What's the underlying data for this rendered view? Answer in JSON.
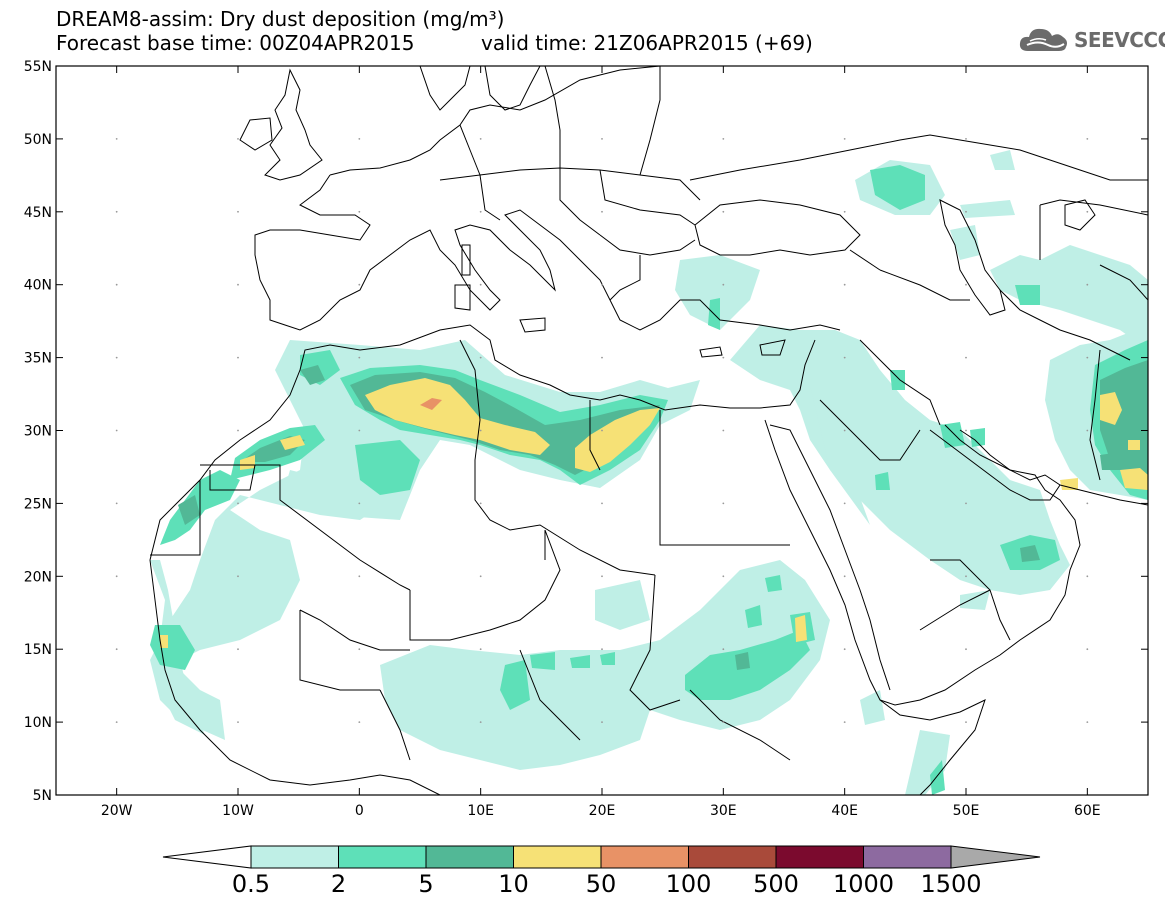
{
  "header": {
    "title_line1": "DREAM8-assim: Dry dust deposition (mg/m³)",
    "base_time": "Forecast base time: 00Z04APR2015",
    "valid_time": "valid time: 21Z06APR2015 (+69)",
    "logo_text": "SEEVCCC",
    "logo_icon": "cloud-icon"
  },
  "map": {
    "extent": {
      "lon": [
        -25,
        65
      ],
      "lat": [
        5,
        55
      ]
    },
    "lat_ticks": [
      {
        "value": 55,
        "label": "55N"
      },
      {
        "value": 50,
        "label": "50N"
      },
      {
        "value": 45,
        "label": "45N"
      },
      {
        "value": 40,
        "label": "40N"
      },
      {
        "value": 35,
        "label": "35N"
      },
      {
        "value": 30,
        "label": "30N"
      },
      {
        "value": 25,
        "label": "25N"
      },
      {
        "value": 20,
        "label": "20N"
      },
      {
        "value": 15,
        "label": "15N"
      },
      {
        "value": 10,
        "label": "10N"
      },
      {
        "value": 5,
        "label": "5N"
      }
    ],
    "lon_ticks": [
      {
        "value": -20,
        "label": "20W"
      },
      {
        "value": -10,
        "label": "10W"
      },
      {
        "value": 0,
        "label": "0"
      },
      {
        "value": 10,
        "label": "10E"
      },
      {
        "value": 20,
        "label": "20E"
      },
      {
        "value": 30,
        "label": "30E"
      },
      {
        "value": 40,
        "label": "40E"
      },
      {
        "value": 50,
        "label": "50E"
      },
      {
        "value": 60,
        "label": "60E"
      }
    ],
    "grid_dots": true
  },
  "colorbar": {
    "thresholds": [
      "0.5",
      "2",
      "5",
      "10",
      "50",
      "100",
      "500",
      "1000",
      "1500"
    ],
    "colors": [
      "#ffffff",
      "#bfefe6",
      "#5ee0b8",
      "#52b896",
      "#f6e176",
      "#e89266",
      "#a94a3a",
      "#7b0a2e",
      "#8d6aa0",
      "#a9a9a9"
    ]
  }
}
